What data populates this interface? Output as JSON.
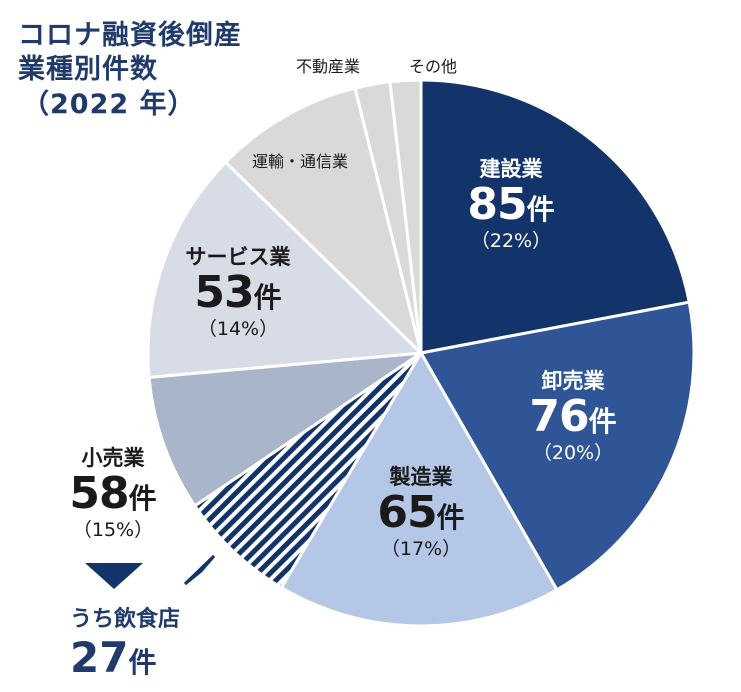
{
  "title": {
    "line1": "コロナ融資後倒産",
    "line2": "業種別件数",
    "line3": "（2022 年）"
  },
  "chart_data": {
    "type": "pie",
    "start_angle_deg": 0,
    "direction": "clockwise",
    "unit": "件",
    "slices": [
      {
        "name": "建設業",
        "value": 85,
        "count_label": "85",
        "percent_label": "（22%）",
        "color": "#13336b"
      },
      {
        "name": "卸売業",
        "value": 76,
        "count_label": "76",
        "percent_label": "（20%）",
        "color": "#2f5597"
      },
      {
        "name": "製造業",
        "value": 65,
        "count_label": "65",
        "percent_label": "（17%）",
        "color": "#b4c7e7"
      },
      {
        "name": "小売業",
        "value": 58,
        "count_label": "58",
        "percent_label": "（15%）",
        "color": "#a9b5c9",
        "sub_segment": {
          "name": "うち飲食店",
          "value": 27,
          "count_label": "27",
          "pattern": "diagonal-stripes",
          "stripe_color": "#13336b"
        }
      },
      {
        "name": "サービス業",
        "value": 53,
        "count_label": "53",
        "percent_label": "（14%）",
        "color": "#d7dce6"
      },
      {
        "name": "運輸・通信業",
        "value": 34,
        "color": "#d9d9d9"
      },
      {
        "name": "不動産業",
        "value": 8,
        "color": "#d9d9d9"
      },
      {
        "name": "その他",
        "value": 7,
        "color": "#d9d9d9"
      }
    ]
  },
  "labels": {
    "construction": {
      "name": "建設業",
      "num": "85",
      "unit": "件",
      "pct": "（22%）"
    },
    "wholesale": {
      "name": "卸売業",
      "num": "76",
      "unit": "件",
      "pct": "（20%）"
    },
    "manufacturing": {
      "name": "製造業",
      "num": "65",
      "unit": "件",
      "pct": "（17%）"
    },
    "retail": {
      "name": "小売業",
      "num": "58",
      "unit": "件",
      "pct": "（15%）"
    },
    "services": {
      "name": "サービス業",
      "num": "53",
      "unit": "件",
      "pct": "（14%）"
    },
    "transport": {
      "name": "運輸・通信業"
    },
    "realestate": {
      "name": "不動産業"
    },
    "other": {
      "name": "その他"
    },
    "restaurants": {
      "name": "うち飲食店",
      "num": "27",
      "unit": "件"
    }
  }
}
